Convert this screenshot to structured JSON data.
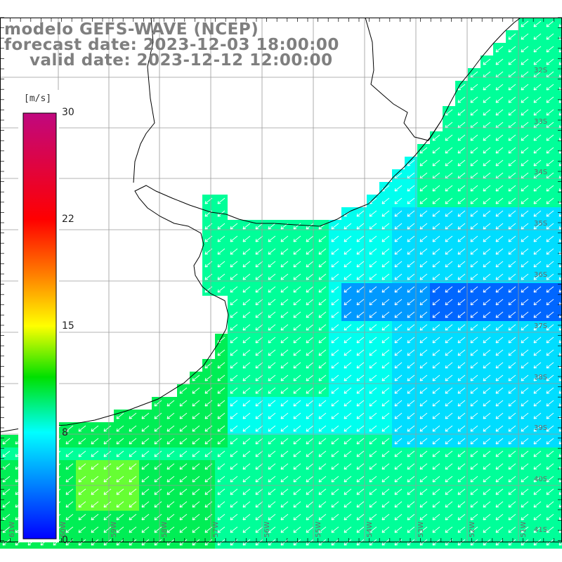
{
  "title": {
    "line1": "modelo GEFS-WAVE (NCEP)",
    "line2": "forecast date: 2023-12-03 18:00:00",
    "line3": "valid date: 2023-12-12 12:00:00"
  },
  "colorbar": {
    "unit": "[m/s]",
    "ticks": [
      "30",
      "22",
      "15",
      "8",
      "0"
    ],
    "stops": [
      "#c0087f",
      "#ff0000",
      "#ff7f00",
      "#ffff00",
      "#00e000",
      "#00ffff",
      "#0000ff"
    ]
  },
  "map": {
    "land_color": "#ffffff",
    "coast_color": "#000000",
    "grid_color": "#9a9a9a",
    "lat_labels": [
      "32S",
      "33S",
      "34S",
      "35S",
      "36S",
      "37S",
      "38S",
      "39S",
      "40S",
      "41S"
    ],
    "lon_labels": [
      "61W",
      "60W",
      "59W",
      "58W",
      "57W",
      "56W",
      "55W",
      "54W",
      "53W",
      "52W",
      "51W"
    ],
    "field_colors": {
      "light_green": "#66ff33",
      "green": "#00ee55",
      "green_cyan": "#00ff99",
      "cyan": "#00ffee",
      "sky": "#00ddff",
      "blue": "#0099ff",
      "deep_blue": "#0066ff"
    }
  }
}
